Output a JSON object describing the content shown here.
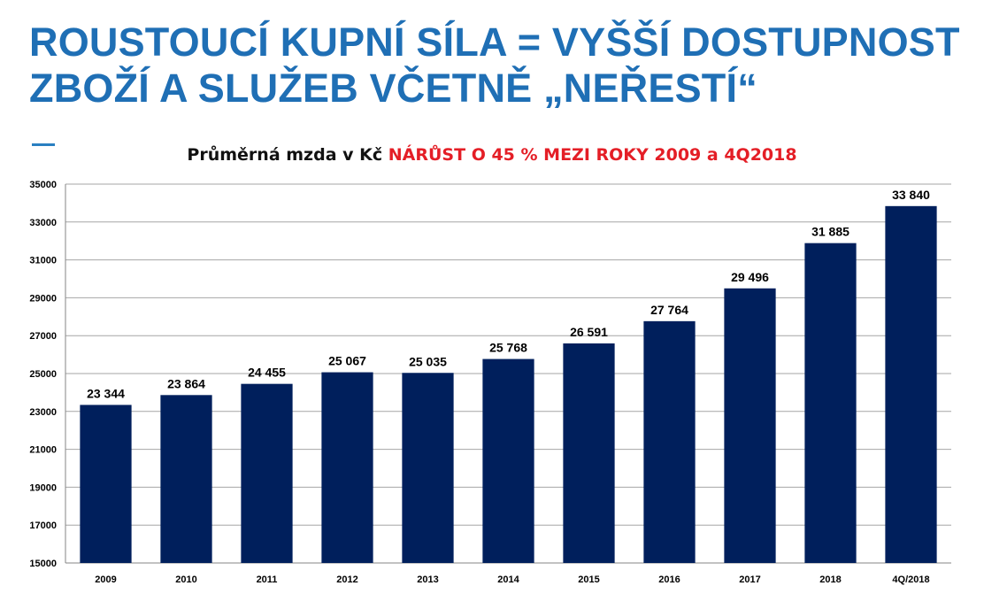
{
  "slide": {
    "title_line1": "ROUSTOUCÍ KUPNÍ SÍLA = VYŠŠÍ DOSTUPNOST",
    "title_line2": "ZBOŽÍ A SLUŽEB VČETNĚ „NEŘESTÍ“"
  },
  "colors": {
    "title": "#1f6fb5",
    "bar": "#001f5c",
    "highlight": "#e41e26"
  },
  "chart_data": {
    "type": "bar",
    "title_prefix": "Průměrná mzda v Kč",
    "title_highlight": "NÁRŮST O  45 % MEZI ROKY 2009 a 4Q2018",
    "xlabel": "",
    "ylabel": "",
    "ylim": [
      15000,
      35000
    ],
    "yticks": [
      "15000",
      "17000",
      "19000",
      "21000",
      "23000",
      "25000",
      "27000",
      "29000",
      "31000",
      "33000",
      "35000"
    ],
    "grid": true,
    "legend": "none",
    "categories": [
      "2009",
      "2010",
      "2011",
      "2012",
      "2013",
      "2014",
      "2015",
      "2016",
      "2017",
      "2018",
      "4Q/2018"
    ],
    "values": [
      23344,
      23864,
      24455,
      25067,
      25035,
      25768,
      26591,
      27764,
      29496,
      31885,
      33840
    ],
    "value_labels": [
      "23 344",
      "23 864",
      "24 455",
      "25 067",
      "25 035",
      "25 768",
      "26 591",
      "27 764",
      "29 496",
      "31 885",
      "33 840"
    ]
  }
}
